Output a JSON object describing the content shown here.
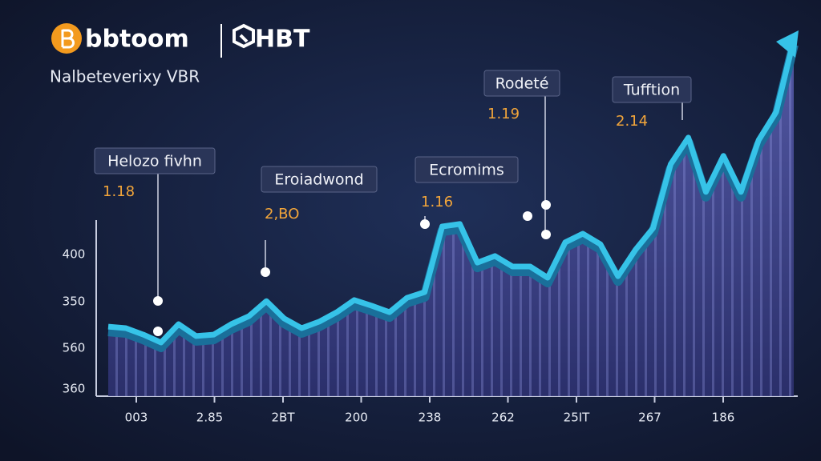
{
  "chart_data": {
    "type": "area",
    "title": "bbtoom",
    "brand": "HBT",
    "subtitle": "Nalbeteverixy VBR",
    "x_labels": [
      "003",
      "2.85",
      "2BT",
      "200",
      "238",
      "262",
      "25IT",
      "267",
      "186"
    ],
    "y_labels": [
      "400",
      "350",
      "560",
      "360"
    ],
    "ylim": [
      0,
      100
    ],
    "color": "#36c3e8",
    "values": [
      19.3,
      18.9,
      17.1,
      14.9,
      20,
      16.7,
      17.1,
      20,
      22.2,
      26.4,
      21.6,
      18.9,
      20.7,
      23.3,
      26.7,
      25.1,
      23.3,
      27.3,
      28.9,
      47.1,
      47.8,
      37.1,
      38.9,
      36,
      36,
      32.9,
      42.7,
      45.1,
      42.2,
      33.3,
      40.7,
      46.7,
      64.4,
      71.8,
      56.7,
      66.7,
      56.7,
      71.1,
      78.9,
      98.9
    ],
    "annotations": [
      {
        "label": "Helozo fivhn",
        "value": "1.18"
      },
      {
        "label": "Eroiadwond",
        "value": "2,BO"
      },
      {
        "label": "Ecromims",
        "value": "1.16"
      },
      {
        "label": "Rodeté",
        "value": "1.19"
      },
      {
        "label": "Tufftion",
        "value": "2.14"
      }
    ]
  }
}
